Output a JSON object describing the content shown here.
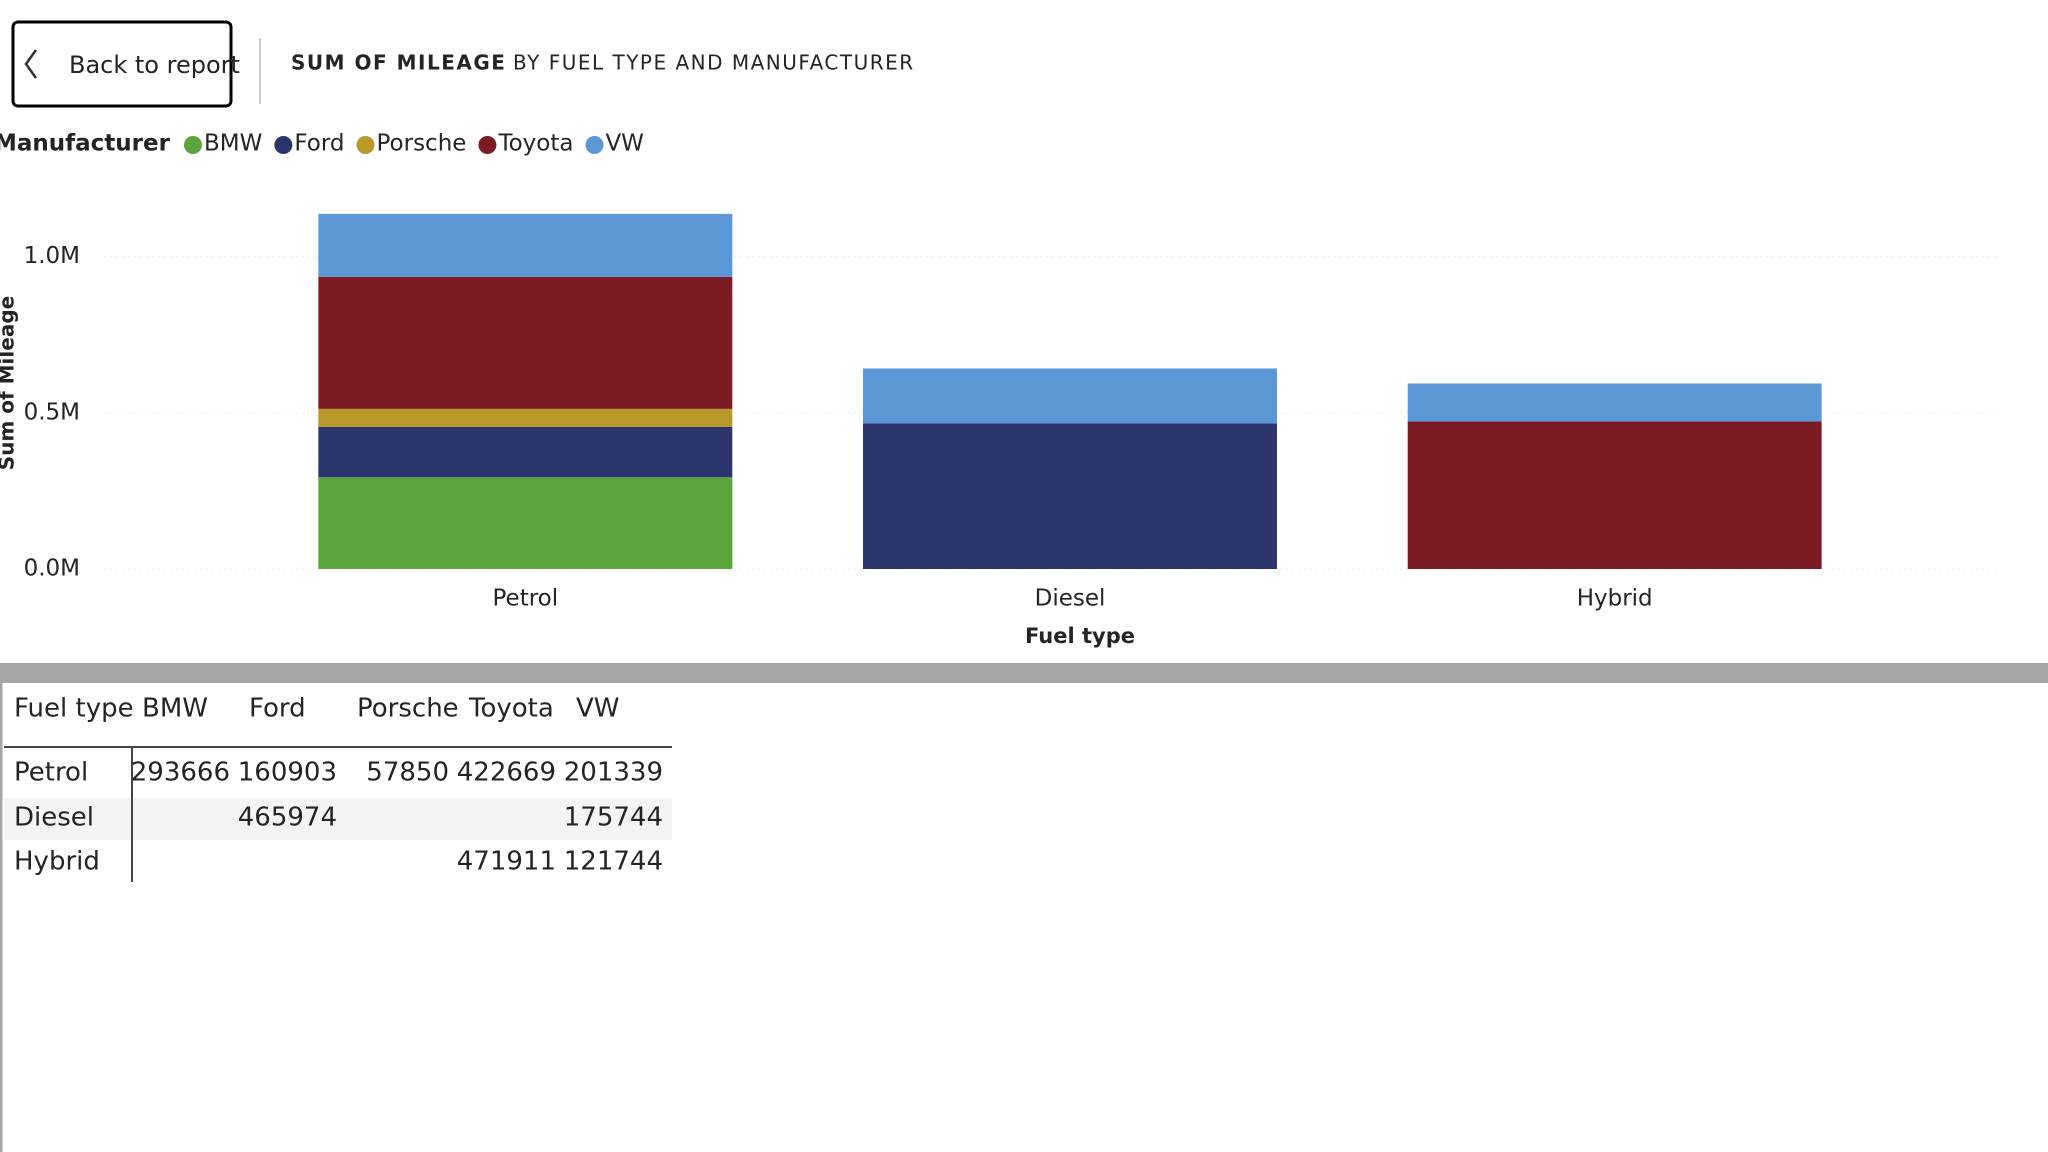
{
  "header": {
    "back": "Back to report",
    "title": "SUM OF MILEAGE",
    "subtitle": "BY FUEL TYPE AND MANUFACTURER"
  },
  "chart_data": {
    "type": "stacked-bar",
    "legend_title": "Manufacturer",
    "x_label": "Fuel type",
    "y_label": "Sum of Mileage",
    "categories": [
      "Petrol",
      "Diesel",
      "Hybrid"
    ],
    "series": [
      {
        "name": "BMW",
        "color": "#5ba33b",
        "values": [
          293666,
          null,
          null
        ]
      },
      {
        "name": "Ford",
        "color": "#2b346b",
        "values": [
          160903,
          465974,
          null
        ]
      },
      {
        "name": "Porsche",
        "color": "#b8982a",
        "values": [
          57850,
          null,
          null
        ]
      },
      {
        "name": "Toyota",
        "color": "#7b1c25",
        "values": [
          422669,
          null,
          471911
        ]
      },
      {
        "name": "VW",
        "color": "#5b97d5",
        "values": [
          201339,
          175744,
          121744
        ]
      }
    ],
    "ylim": [
      0,
      1200000
    ],
    "yticks": [
      {
        "value": 0,
        "label": "0.0M"
      },
      {
        "value": 500000,
        "label": "0.5M"
      },
      {
        "value": 1000000,
        "label": "1.0M"
      }
    ],
    "grid": true
  },
  "table": {
    "columns": [
      "Fuel type",
      "BMW",
      "Ford",
      "Porsche",
      "Toyota",
      "VW"
    ],
    "rows": [
      [
        "Petrol",
        293666,
        160903,
        57850,
        422669,
        201339
      ],
      [
        "Diesel",
        null,
        465974,
        null,
        null,
        175744
      ],
      [
        "Hybrid",
        null,
        null,
        null,
        471911,
        121744
      ]
    ]
  }
}
